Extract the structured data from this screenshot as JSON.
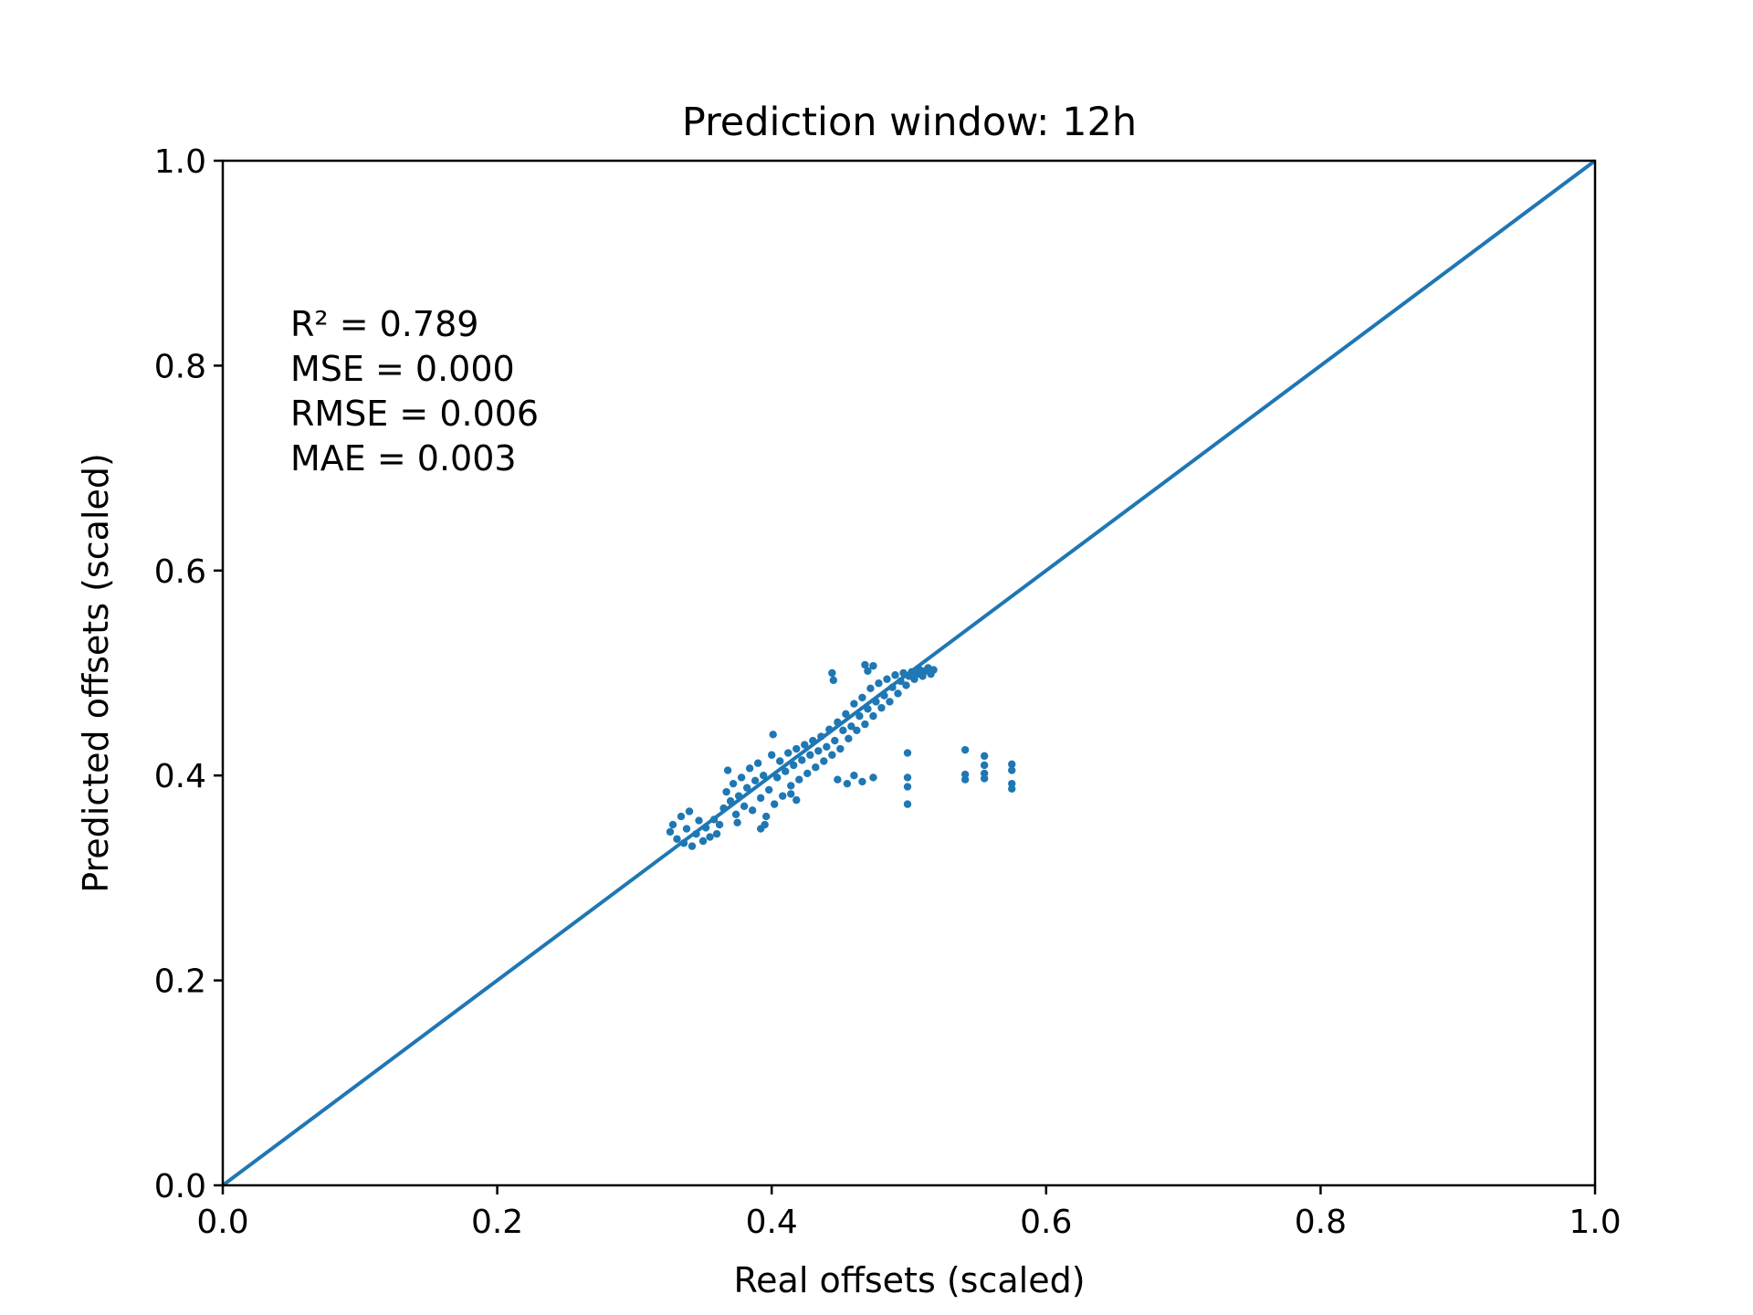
{
  "chart_data": {
    "type": "scatter",
    "title": "Prediction window: 12h",
    "xlabel": "Real offsets (scaled)",
    "ylabel": "Predicted offsets (scaled)",
    "xlim": [
      0.0,
      1.0
    ],
    "ylim": [
      0.0,
      1.0
    ],
    "xticks": [
      "0.0",
      "0.2",
      "0.4",
      "0.6",
      "0.8",
      "1.0"
    ],
    "yticks": [
      "0.0",
      "0.2",
      "0.4",
      "0.6",
      "0.8",
      "1.0"
    ],
    "grid": false,
    "legend": "none",
    "color": "#1f77b4",
    "annotations": [
      "R² = 0.789",
      "MSE = 0.000",
      "RMSE = 0.006",
      "MAE = 0.003"
    ],
    "reference_line": {
      "x": [
        0.0,
        1.0
      ],
      "y": [
        0.0,
        1.0
      ]
    },
    "series": [
      {
        "values": [
          [
            0.326,
            0.345
          ],
          [
            0.328,
            0.352
          ],
          [
            0.331,
            0.338
          ],
          [
            0.334,
            0.36
          ],
          [
            0.336,
            0.334
          ],
          [
            0.338,
            0.348
          ],
          [
            0.34,
            0.365
          ],
          [
            0.342,
            0.331
          ],
          [
            0.345,
            0.343
          ],
          [
            0.347,
            0.356
          ],
          [
            0.35,
            0.336
          ],
          [
            0.352,
            0.349
          ],
          [
            0.355,
            0.34
          ],
          [
            0.358,
            0.357
          ],
          [
            0.36,
            0.343
          ],
          [
            0.362,
            0.352
          ],
          [
            0.365,
            0.368
          ],
          [
            0.367,
            0.384
          ],
          [
            0.368,
            0.405
          ],
          [
            0.37,
            0.375
          ],
          [
            0.372,
            0.392
          ],
          [
            0.374,
            0.362
          ],
          [
            0.376,
            0.38
          ],
          [
            0.378,
            0.398
          ],
          [
            0.38,
            0.37
          ],
          [
            0.382,
            0.388
          ],
          [
            0.384,
            0.407
          ],
          [
            0.386,
            0.366
          ],
          [
            0.388,
            0.395
          ],
          [
            0.39,
            0.412
          ],
          [
            0.392,
            0.378
          ],
          [
            0.394,
            0.4
          ],
          [
            0.396,
            0.36
          ],
          [
            0.398,
            0.386
          ],
          [
            0.4,
            0.42
          ],
          [
            0.401,
            0.44
          ],
          [
            0.402,
            0.372
          ],
          [
            0.404,
            0.398
          ],
          [
            0.406,
            0.414
          ],
          [
            0.408,
            0.38
          ],
          [
            0.41,
            0.404
          ],
          [
            0.412,
            0.422
          ],
          [
            0.414,
            0.39
          ],
          [
            0.416,
            0.41
          ],
          [
            0.418,
            0.426
          ],
          [
            0.42,
            0.396
          ],
          [
            0.422,
            0.415
          ],
          [
            0.424,
            0.43
          ],
          [
            0.426,
            0.402
          ],
          [
            0.428,
            0.42
          ],
          [
            0.43,
            0.434
          ],
          [
            0.432,
            0.408
          ],
          [
            0.434,
            0.424
          ],
          [
            0.436,
            0.438
          ],
          [
            0.438,
            0.414
          ],
          [
            0.44,
            0.428
          ],
          [
            0.442,
            0.445
          ],
          [
            0.444,
            0.42
          ],
          [
            0.446,
            0.434
          ],
          [
            0.448,
            0.452
          ],
          [
            0.45,
            0.426
          ],
          [
            0.452,
            0.444
          ],
          [
            0.454,
            0.46
          ],
          [
            0.456,
            0.436
          ],
          [
            0.458,
            0.448
          ],
          [
            0.46,
            0.47
          ],
          [
            0.462,
            0.444
          ],
          [
            0.464,
            0.458
          ],
          [
            0.466,
            0.476
          ],
          [
            0.468,
            0.45
          ],
          [
            0.47,
            0.465
          ],
          [
            0.472,
            0.485
          ],
          [
            0.474,
            0.458
          ],
          [
            0.476,
            0.472
          ],
          [
            0.478,
            0.49
          ],
          [
            0.48,
            0.466
          ],
          [
            0.482,
            0.478
          ],
          [
            0.484,
            0.494
          ],
          [
            0.486,
            0.472
          ],
          [
            0.488,
            0.486
          ],
          [
            0.49,
            0.498
          ],
          [
            0.492,
            0.48
          ],
          [
            0.494,
            0.492
          ],
          [
            0.496,
            0.5
          ],
          [
            0.498,
            0.488
          ],
          [
            0.5,
            0.497
          ],
          [
            0.502,
            0.501
          ],
          [
            0.504,
            0.494
          ],
          [
            0.506,
            0.499
          ],
          [
            0.508,
            0.503
          ],
          [
            0.51,
            0.497
          ],
          [
            0.512,
            0.502
          ],
          [
            0.514,
            0.505
          ],
          [
            0.516,
            0.499
          ],
          [
            0.518,
            0.503
          ],
          [
            0.444,
            0.5
          ],
          [
            0.445,
            0.493
          ],
          [
            0.468,
            0.508
          ],
          [
            0.47,
            0.502
          ],
          [
            0.474,
            0.507
          ],
          [
            0.448,
            0.396
          ],
          [
            0.455,
            0.392
          ],
          [
            0.46,
            0.4
          ],
          [
            0.466,
            0.394
          ],
          [
            0.474,
            0.398
          ],
          [
            0.414,
            0.382
          ],
          [
            0.418,
            0.376
          ],
          [
            0.395,
            0.352
          ],
          [
            0.392,
            0.348
          ],
          [
            0.375,
            0.354
          ],
          [
            0.499,
            0.422
          ],
          [
            0.499,
            0.398
          ],
          [
            0.499,
            0.389
          ],
          [
            0.499,
            0.372
          ],
          [
            0.541,
            0.425
          ],
          [
            0.541,
            0.401
          ],
          [
            0.541,
            0.396
          ],
          [
            0.555,
            0.419
          ],
          [
            0.555,
            0.41
          ],
          [
            0.555,
            0.402
          ],
          [
            0.555,
            0.397
          ],
          [
            0.575,
            0.411
          ],
          [
            0.575,
            0.405
          ],
          [
            0.575,
            0.392
          ],
          [
            0.575,
            0.387
          ]
        ]
      }
    ]
  }
}
